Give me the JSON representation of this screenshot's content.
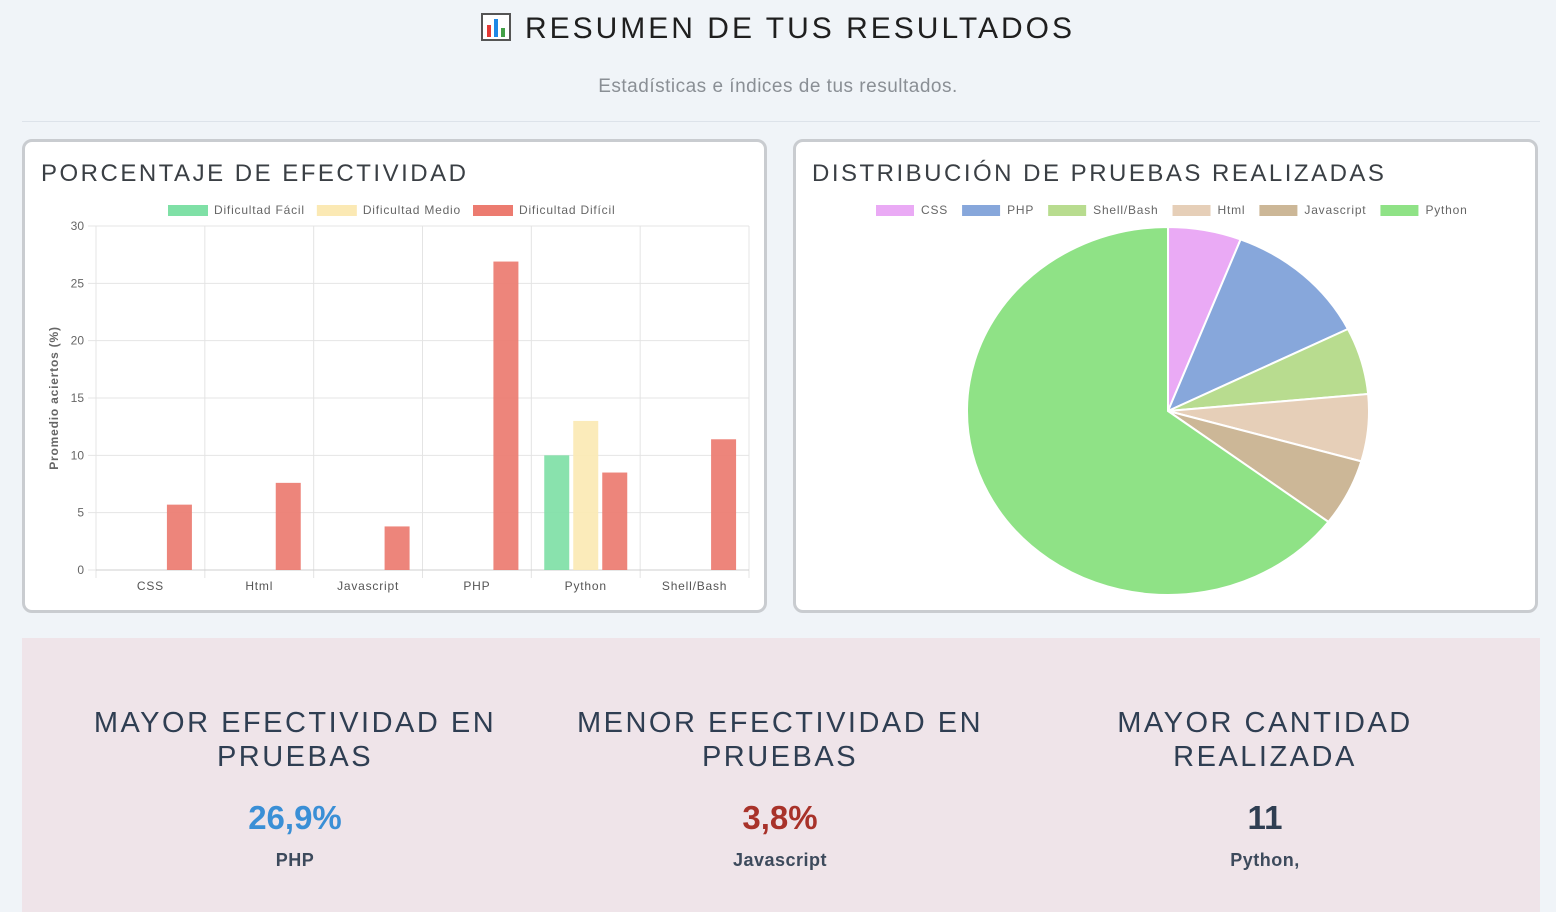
{
  "header": {
    "title": "RESUMEN DE TUS RESULTADOS",
    "icon": "bar-chart-icon",
    "subtitle": "Estadísticas e índices de tus resultados."
  },
  "bar_card": {
    "title": "PORCENTAJE DE EFECTIVIDAD"
  },
  "pie_card": {
    "title": "DISTRIBUCIÓN DE PRUEBAS REALIZADAS"
  },
  "chart_data": [
    {
      "type": "bar",
      "title": "PORCENTAJE DE EFECTIVIDAD",
      "ylabel": "Promedio aciertos (%)",
      "xlabel": "",
      "ylim": [
        0,
        30
      ],
      "yticks": [
        0,
        5,
        10,
        15,
        20,
        25,
        30
      ],
      "grid": true,
      "legend": "top",
      "categories": [
        "CSS",
        "Html",
        "Javascript",
        "PHP",
        "Python",
        "Shell/Bash"
      ],
      "series": [
        {
          "name": "Dificultad Fácil",
          "color": "#7fe0a6",
          "values": [
            0,
            0,
            0,
            0,
            10,
            0
          ]
        },
        {
          "name": "Dificultad Medio",
          "color": "#fbe9b4",
          "values": [
            0,
            0,
            0,
            0,
            13,
            0
          ]
        },
        {
          "name": "Dificultad Difícil",
          "color": "#ec7b70",
          "values": [
            5.7,
            7.6,
            3.8,
            26.9,
            8.5,
            11.4
          ]
        }
      ]
    },
    {
      "type": "pie",
      "title": "DISTRIBUCIÓN DE PRUEBAS REALIZADAS",
      "legend": "top",
      "slices": [
        {
          "label": "CSS",
          "value": 1,
          "color": "#eaaaf5"
        },
        {
          "label": "PHP",
          "value": 2,
          "color": "#87a7db"
        },
        {
          "label": "Shell/Bash",
          "value": 1,
          "color": "#b8dc8f"
        },
        {
          "label": "Html",
          "value": 1,
          "color": "#e6cfb8"
        },
        {
          "label": "Javascript",
          "value": 1,
          "color": "#ccb797"
        },
        {
          "label": "Python",
          "value": 11,
          "color": "#8fe286"
        }
      ]
    }
  ],
  "stats": [
    {
      "heading": "MAYOR EFECTIVIDAD EN PRUEBAS",
      "value": "26,9%",
      "label": "PHP",
      "color": "#3a8fd6"
    },
    {
      "heading": "MENOR EFECTIVIDAD EN PRUEBAS",
      "value": "3,8%",
      "label": "Javascript",
      "color": "#a8322a"
    },
    {
      "heading": "MAYOR CANTIDAD REALIZADA",
      "value": "11",
      "label": "Python,",
      "color": "#2f3e52"
    }
  ]
}
